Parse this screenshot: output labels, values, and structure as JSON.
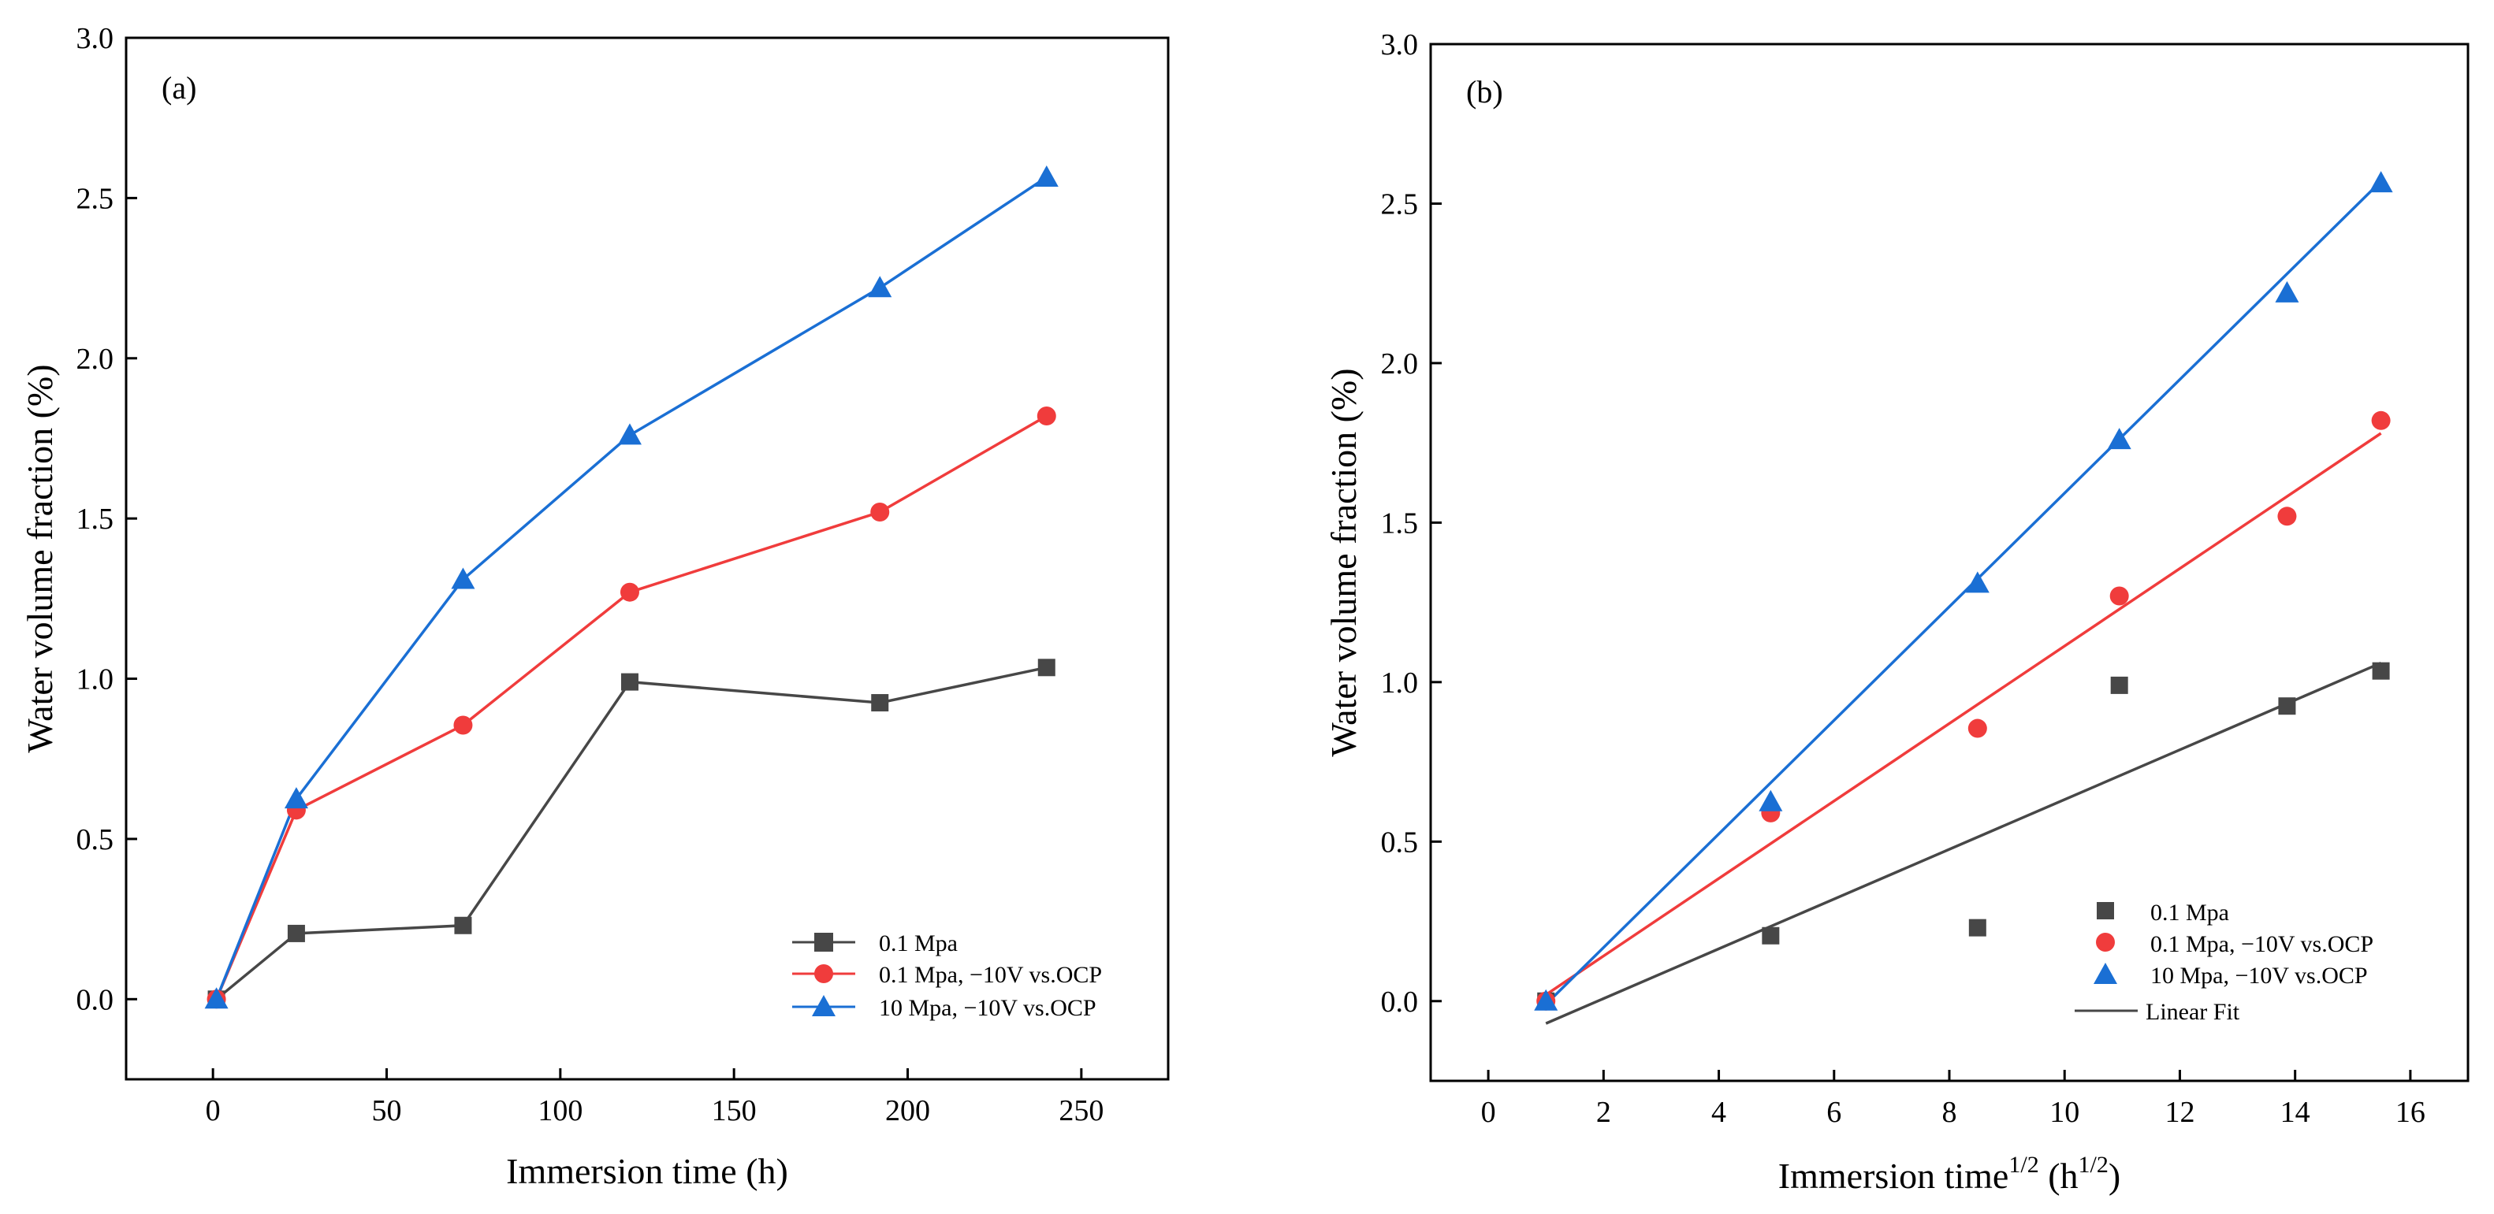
{
  "chart_data": [
    {
      "type": "line",
      "panel_label": "(a)",
      "xlabel": "Immersion time (h)",
      "ylabel": "Water volume fraction (%)",
      "xlim": [
        -25,
        275
      ],
      "ylim": [
        -0.25,
        3.0
      ],
      "xticks": [
        0,
        50,
        100,
        150,
        200,
        250
      ],
      "xtick_labels": [
        "0",
        "50",
        "100",
        "150",
        "200",
        "250"
      ],
      "yticks": [
        0.0,
        0.5,
        1.0,
        1.5,
        2.0,
        2.5,
        3.0
      ],
      "ytick_labels": [
        "0.0",
        "0.5",
        "1.0",
        "1.5",
        "2.0",
        "2.5",
        "3.0"
      ],
      "grid": false,
      "legend_position": "bottom-right",
      "series": [
        {
          "name": "0.1 Mpa",
          "color": "#474747",
          "marker": "square",
          "x": [
            1,
            24,
            72,
            120,
            192,
            240
          ],
          "y": [
            0.0,
            0.205,
            0.23,
            0.99,
            0.925,
            1.035
          ]
        },
        {
          "name": "0.1 Mpa, −10V vs.OCP",
          "color": "#f03c3c",
          "marker": "circle",
          "x": [
            1,
            24,
            72,
            120,
            192,
            240
          ],
          "y": [
            0.0,
            0.59,
            0.855,
            1.27,
            1.52,
            1.82
          ]
        },
        {
          "name": "10 Mpa, −10V vs.OCP",
          "color": "#1a6fd4",
          "marker": "triangle",
          "x": [
            1,
            24,
            72,
            120,
            192,
            240
          ],
          "y": [
            0.0,
            0.625,
            1.31,
            1.76,
            2.22,
            2.565
          ]
        }
      ]
    },
    {
      "type": "scatter",
      "panel_label": "(b)",
      "xlabel_main": "Immersion time",
      "xlabel_sup1": "1/2",
      "xlabel_mid": " (h",
      "xlabel_sup2": "1/2",
      "xlabel_end": ")",
      "ylabel": "Water volume fraction (%)",
      "xlim": [
        -1,
        17
      ],
      "ylim": [
        -0.25,
        3.0
      ],
      "xticks": [
        0,
        2,
        4,
        6,
        8,
        10,
        12,
        14,
        16
      ],
      "xtick_labels": [
        "0",
        "2",
        "4",
        "6",
        "8",
        "10",
        "12",
        "14",
        "16"
      ],
      "yticks": [
        0.0,
        0.5,
        1.0,
        1.5,
        2.0,
        2.5,
        3.0
      ],
      "ytick_labels": [
        "0.0",
        "0.5",
        "1.0",
        "1.5",
        "2.0",
        "2.5",
        "3.0"
      ],
      "grid": false,
      "legend_position": "bottom-right",
      "fit_label": "Linear Fit",
      "series": [
        {
          "name": "0.1 Mpa",
          "color": "#474747",
          "marker": "square",
          "x": [
            1,
            4.9,
            8.49,
            10.95,
            13.86,
            15.49
          ],
          "y": [
            0.0,
            0.205,
            0.23,
            0.99,
            0.925,
            1.035
          ],
          "fit": [
            [
              1,
              -0.07
            ],
            [
              15.49,
              1.06
            ]
          ]
        },
        {
          "name": "0.1 Mpa, −10V vs.OCP",
          "color": "#f03c3c",
          "marker": "circle",
          "x": [
            1,
            4.9,
            8.49,
            10.95,
            13.86,
            15.49
          ],
          "y": [
            0.0,
            0.59,
            0.855,
            1.27,
            1.52,
            1.82
          ],
          "fit": [
            [
              1,
              0.02
            ],
            [
              15.49,
              1.78
            ]
          ]
        },
        {
          "name": "10 Mpa, −10V vs.OCP",
          "color": "#1a6fd4",
          "marker": "triangle",
          "x": [
            1,
            4.9,
            8.49,
            10.95,
            13.86,
            15.49
          ],
          "y": [
            0.0,
            0.625,
            1.31,
            1.76,
            2.22,
            2.565
          ],
          "fit": [
            [
              1,
              -0.01
            ],
            [
              15.49,
              2.57
            ]
          ]
        }
      ]
    }
  ]
}
